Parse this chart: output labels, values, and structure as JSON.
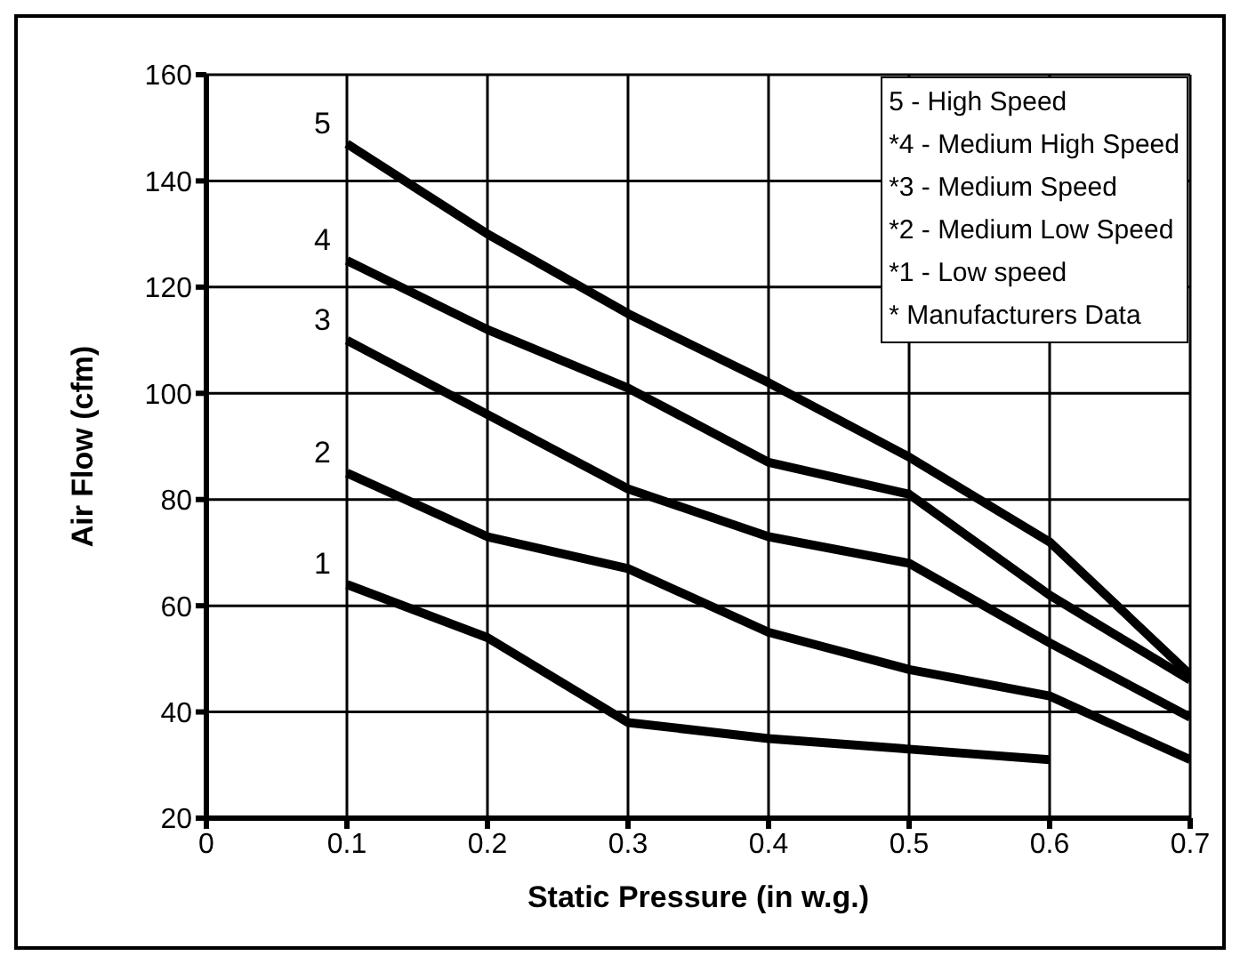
{
  "chart_data": {
    "type": "line",
    "xlabel": "Static Pressure (in w.g.)",
    "ylabel": "Air Flow (cfm)",
    "x": [
      0.1,
      0.2,
      0.3,
      0.4,
      0.5,
      0.6,
      0.7
    ],
    "series": [
      {
        "name": "5",
        "color": "#000000",
        "values": [
          147,
          130,
          115,
          102,
          88,
          72,
          47
        ]
      },
      {
        "name": "4",
        "color": "#000000",
        "values": [
          125,
          112,
          101,
          87,
          81,
          62,
          46
        ]
      },
      {
        "name": "3",
        "color": "#000000",
        "values": [
          110,
          96,
          82,
          73,
          68,
          53,
          39
        ]
      },
      {
        "name": "2",
        "color": "#000000",
        "values": [
          85,
          73,
          67,
          55,
          48,
          43,
          31
        ]
      },
      {
        "name": "1",
        "color": "#000000",
        "values": [
          64,
          54,
          38,
          35,
          33,
          31,
          null
        ]
      }
    ],
    "annotations": [
      "5 - High Speed",
      "*4 - Medium High Speed",
      "*3 - Medium Speed",
      "*2 - Medium Low Speed",
      "*1 - Low speed",
      "* Manufacturers Data"
    ],
    "xlim": [
      0,
      0.7
    ],
    "xticks": [
      0,
      0.1,
      0.2,
      0.3,
      0.4,
      0.5,
      0.6,
      0.7
    ],
    "ylim": [
      20,
      160
    ],
    "yticks": [
      20,
      40,
      60,
      80,
      100,
      120,
      140,
      160
    ],
    "grid": true,
    "marker": "none",
    "line_style": "solid"
  }
}
